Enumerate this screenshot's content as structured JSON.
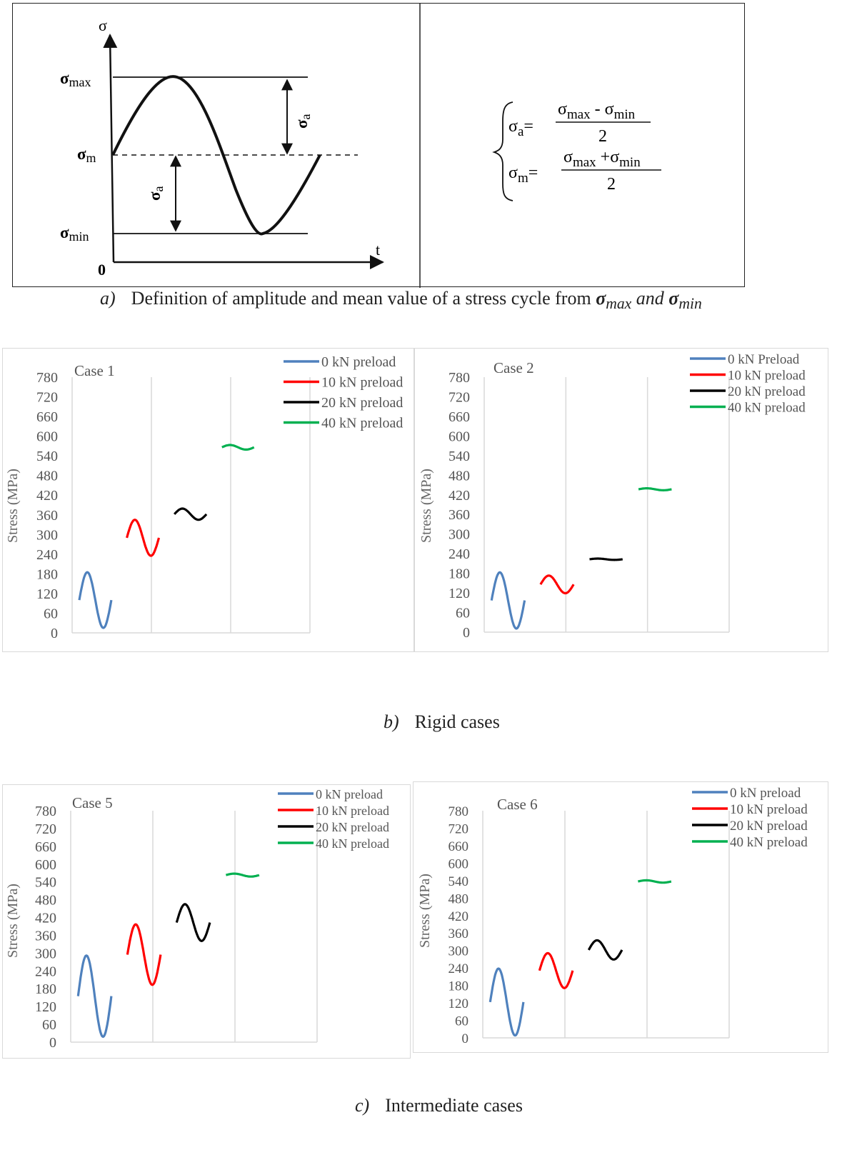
{
  "diagram": {
    "axis_y_label": "σ",
    "axis_x_label": "t",
    "origin_label": "0",
    "sigma_max": {
      "base": "σ",
      "sub": "max"
    },
    "sigma_m": {
      "base": "σ",
      "sub": "m"
    },
    "sigma_min": {
      "base": "σ",
      "sub": "min"
    },
    "sigma_a": {
      "base": "σ",
      "sub": "a"
    },
    "formula_a": {
      "lhs_base": "σ",
      "lhs_sub": "a",
      "equals": "=",
      "num_a_base": "σ",
      "num_a_sub": "max",
      "op": " - ",
      "num_b_base": "σ",
      "num_b_sub": "min",
      "den": "2"
    },
    "formula_m": {
      "lhs_base": "σ",
      "lhs_sub": "m",
      "equals": "=",
      "num_a_base": "σ",
      "num_a_sub": "max",
      "op": " +",
      "num_b_base": "σ",
      "num_b_sub": "min",
      "den": "2"
    }
  },
  "captions": {
    "a": {
      "label": "a)",
      "text": "Definition of amplitude and mean value of a stress cycle from ",
      "sym1": "σ",
      "sub1": "max",
      "mid": " and ",
      "sym2": "σ",
      "sub2": "min"
    },
    "b": {
      "label": "b)",
      "text": "Rigid cases"
    },
    "c": {
      "label": "c)",
      "text": "Intermediate cases"
    }
  },
  "colors": {
    "0kN": "#4f81bd",
    "10kN": "#ff0000",
    "20kN": "#000000",
    "40kN": "#00b050"
  },
  "chart_data": [
    {
      "type": "line",
      "title": "Case 1",
      "ylabel": "Stress (MPa)",
      "ylim": [
        0,
        780
      ],
      "yticks": [
        0,
        60,
        120,
        180,
        240,
        300,
        360,
        420,
        480,
        540,
        600,
        660,
        720,
        780
      ],
      "grid": "vertical",
      "legend_position": "top-right",
      "series": [
        {
          "name": "0 kN preload",
          "color": "#4f81bd",
          "mean": 100,
          "amplitude": 85
        },
        {
          "name": "10 kN preload",
          "color": "#ff0000",
          "mean": 290,
          "amplitude": 55
        },
        {
          "name": "20 kN preload",
          "color": "#000000",
          "mean": 362,
          "amplitude": 17
        },
        {
          "name": "40 kN preload",
          "color": "#00b050",
          "mean": 566,
          "amplitude": 7
        }
      ]
    },
    {
      "type": "line",
      "title": "Case 2",
      "ylabel": "Stress (MPa)",
      "ylim": [
        0,
        780
      ],
      "yticks": [
        0,
        60,
        120,
        180,
        240,
        300,
        360,
        420,
        480,
        540,
        600,
        660,
        720,
        780
      ],
      "grid": "vertical",
      "legend_position": "top-right",
      "series": [
        {
          "name": "0 kN Preload",
          "color": "#4f81bd",
          "mean": 97,
          "amplitude": 86
        },
        {
          "name": "10 kN preload",
          "color": "#ff0000",
          "mean": 146,
          "amplitude": 27
        },
        {
          "name": "20 kN preload",
          "color": "#000000",
          "mean": 223,
          "amplitude": 2
        },
        {
          "name": "40 kN preload",
          "color": "#00b050",
          "mean": 437,
          "amplitude": 3
        }
      ]
    },
    {
      "type": "line",
      "title": "Case 5",
      "ylabel": "Stress (MPa)",
      "ylim": [
        0,
        780
      ],
      "yticks": [
        0,
        60,
        120,
        180,
        240,
        300,
        360,
        420,
        480,
        540,
        600,
        660,
        720,
        780
      ],
      "grid": "vertical",
      "legend_position": "top-right",
      "series": [
        {
          "name": "0 kN preload",
          "color": "#4f81bd",
          "mean": 155,
          "amplitude": 137
        },
        {
          "name": "10 kN preload",
          "color": "#ff0000",
          "mean": 295,
          "amplitude": 102
        },
        {
          "name": "20 kN preload",
          "color": "#000000",
          "mean": 403,
          "amplitude": 62
        },
        {
          "name": "40 kN preload",
          "color": "#00b050",
          "mean": 563,
          "amplitude": 5
        }
      ]
    },
    {
      "type": "line",
      "title": "Case 6",
      "ylabel": "Stress (MPa)",
      "ylim": [
        0,
        780
      ],
      "yticks": [
        0,
        60,
        120,
        180,
        240,
        300,
        360,
        420,
        480,
        540,
        600,
        660,
        720,
        780
      ],
      "grid": "vertical",
      "legend_position": "top-right",
      "series": [
        {
          "name": "0 kN preload",
          "color": "#4f81bd",
          "mean": 123,
          "amplitude": 115
        },
        {
          "name": "10 kN preload",
          "color": "#ff0000",
          "mean": 231,
          "amplitude": 60
        },
        {
          "name": "20 kN preload",
          "color": "#000000",
          "mean": 302,
          "amplitude": 33
        },
        {
          "name": "40 kN preload",
          "color": "#00b050",
          "mean": 537,
          "amplitude": 4
        }
      ]
    }
  ]
}
